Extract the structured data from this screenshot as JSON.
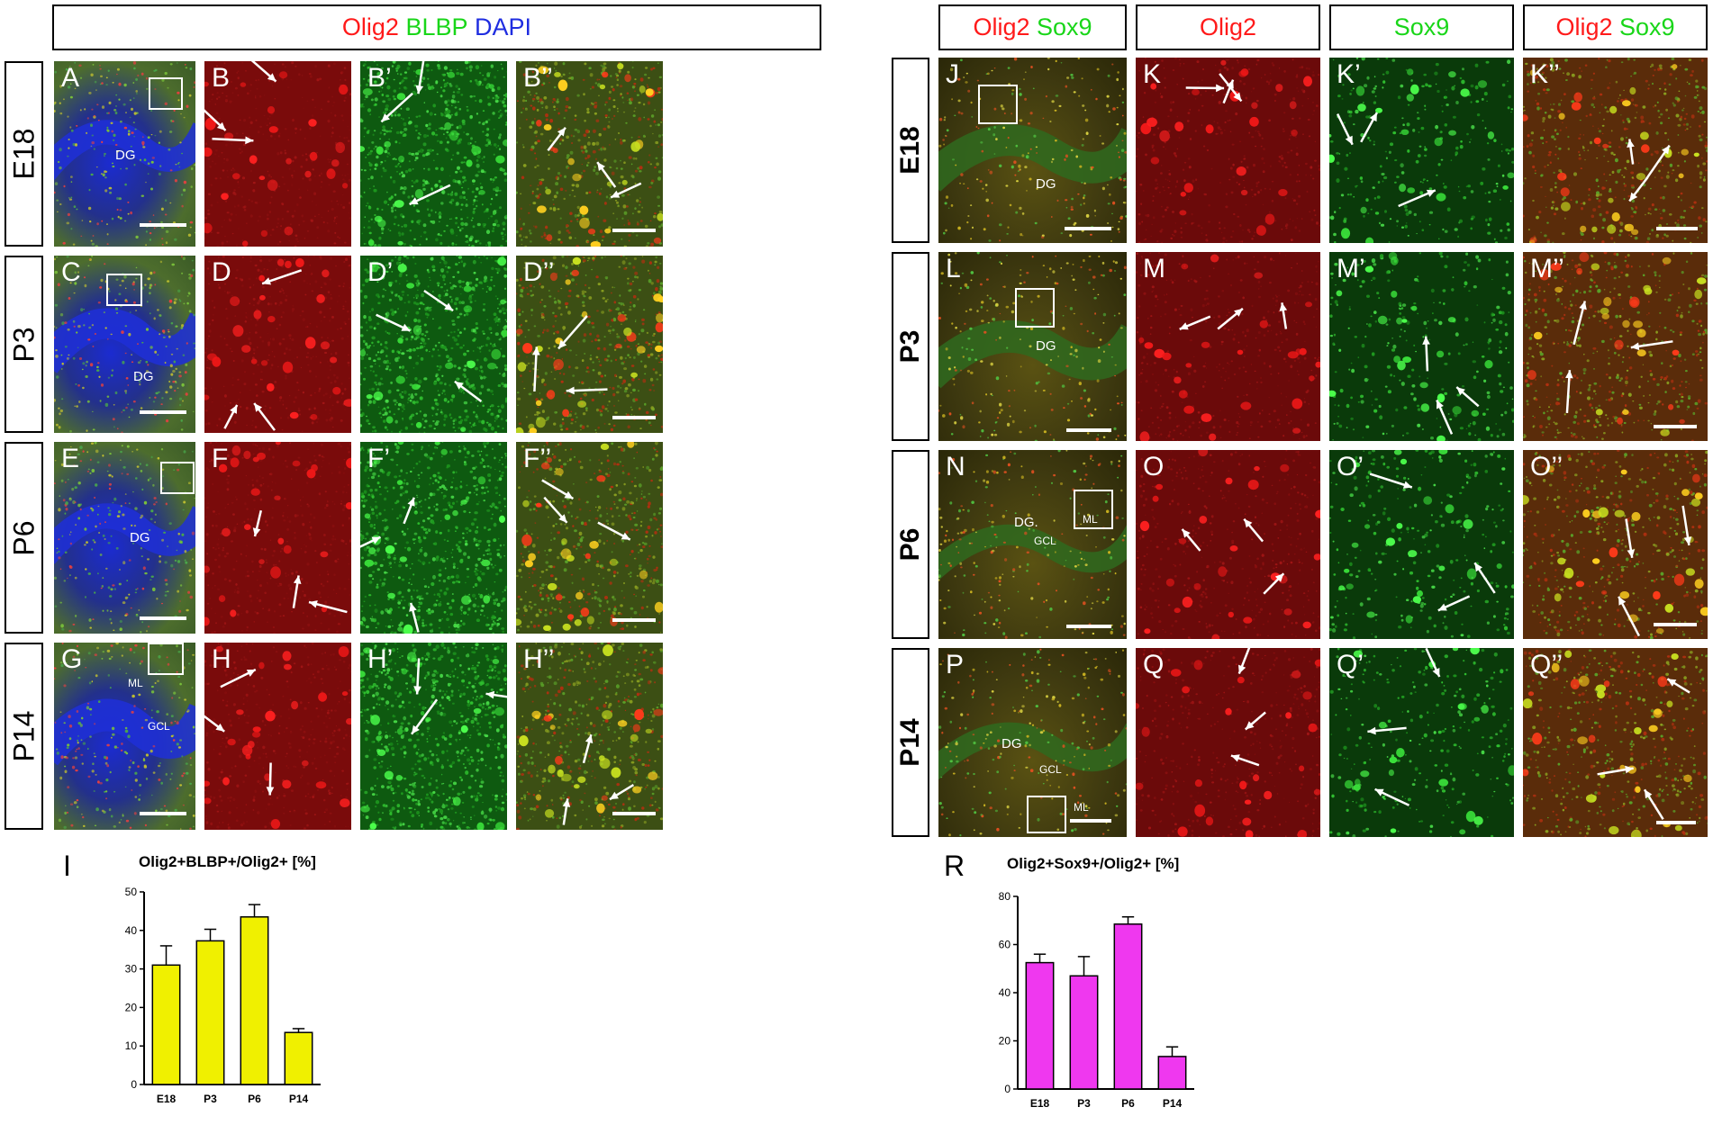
{
  "left_figure": {
    "header": [
      {
        "text": "Olig2",
        "color": "#ff1a1a"
      },
      {
        "text": "BLBP",
        "color": "#19d619"
      },
      {
        "text": "DAPI",
        "color": "#1f2de0"
      }
    ],
    "rows": [
      "E18",
      "P3",
      "P6",
      "P14"
    ],
    "panels": [
      [
        "A",
        "B",
        "B’",
        "B’’"
      ],
      [
        "C",
        "D",
        "D’",
        "D’’"
      ],
      [
        "E",
        "F",
        "F’",
        "F’’"
      ],
      [
        "G",
        "H",
        "H’",
        "H’’"
      ]
    ],
    "region_labels": {
      "dg": "DG",
      "ml": "ML",
      "gcl": "GCL"
    }
  },
  "right_figure": {
    "headers": [
      [
        {
          "text": "Olig2",
          "color": "#ff1a1a"
        },
        {
          "text": "Sox9",
          "color": "#19d619"
        }
      ],
      [
        {
          "text": "Olig2",
          "color": "#ff1a1a"
        }
      ],
      [
        {
          "text": "Sox9",
          "color": "#19d619"
        }
      ],
      [
        {
          "text": "Olig2",
          "color": "#ff1a1a"
        },
        {
          "text": "Sox9",
          "color": "#19d619"
        }
      ]
    ],
    "rows": [
      "E18",
      "P3",
      "P6",
      "P14"
    ],
    "panels": [
      [
        "J",
        "K",
        "K’",
        "K’’"
      ],
      [
        "L",
        "M",
        "M’",
        "M’’"
      ],
      [
        "N",
        "O",
        "O’",
        "O’’"
      ],
      [
        "P",
        "Q",
        "Q’",
        "Q’’"
      ]
    ],
    "region_labels": {
      "dg": "DG",
      "dg_dot": "DG.",
      "ml": "ML",
      "gcl": "GCL"
    }
  },
  "chart_data": [
    {
      "panel": "I",
      "type": "bar",
      "title": "Olig2+BLBP+/Olig2+ [%]",
      "categories": [
        "E18",
        "P3",
        "P6",
        "P14"
      ],
      "values": [
        31,
        37.3,
        43.5,
        13.5
      ],
      "errors": [
        5,
        3,
        3.2,
        1
      ],
      "ylim": [
        0,
        50
      ],
      "yticks": [
        0,
        10,
        20,
        30,
        40,
        50
      ],
      "bar_color": "#f0f000",
      "xlabel": "",
      "ylabel": ""
    },
    {
      "panel": "R",
      "type": "bar",
      "title": "Olig2+Sox9+/Olig2+ [%]",
      "categories": [
        "E18",
        "P3",
        "P6",
        "P14"
      ],
      "values": [
        52.5,
        47,
        68.5,
        13.5
      ],
      "errors": [
        3.5,
        8,
        3,
        4
      ],
      "ylim": [
        0,
        80
      ],
      "yticks": [
        0,
        20,
        40,
        60,
        80
      ],
      "bar_color": "#ef38ef",
      "xlabel": "",
      "ylabel": ""
    }
  ]
}
